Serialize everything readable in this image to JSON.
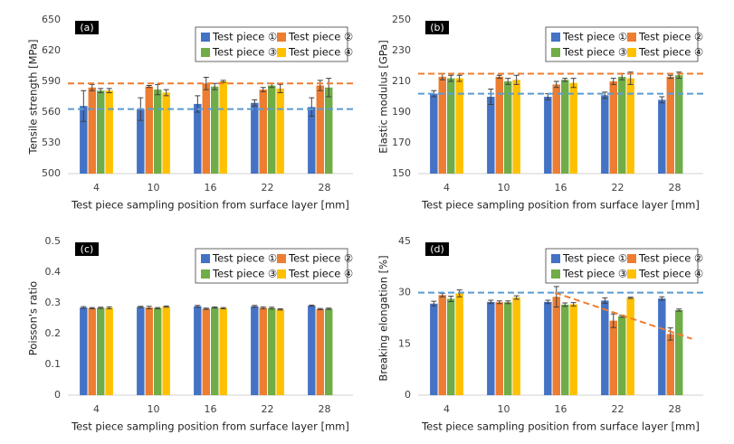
{
  "chart_data": [
    {
      "type": "bar",
      "panel_label": "(a)",
      "ylabel": "Tensile strength [MPa]",
      "xlabel": "Test piece sampling position from surface layer [mm]",
      "categories": [
        "4",
        "10",
        "16",
        "22",
        "28"
      ],
      "ylim": [
        500,
        650
      ],
      "yticks": [
        500,
        530,
        560,
        590,
        620,
        650
      ],
      "legend": "upper right",
      "series": [
        {
          "name": "Test piece ①",
          "color": "#4472c4",
          "values": [
            566,
            563,
            568,
            569,
            565
          ],
          "errors": [
            15,
            11,
            8,
            3,
            9
          ]
        },
        {
          "name": "Test piece ②",
          "color": "#ed7d31",
          "values": [
            584,
            585,
            588,
            582,
            586
          ],
          "errors": [
            3,
            1,
            6,
            2,
            5
          ]
        },
        {
          "name": "Test piece ③",
          "color": "#70ad47",
          "values": [
            581,
            582,
            585,
            586,
            584
          ],
          "errors": [
            2,
            5,
            3,
            2,
            9
          ]
        },
        {
          "name": "Test piece ④",
          "color": "#ffc000",
          "values": [
            581,
            579,
            590,
            583,
            null
          ],
          "errors": [
            2,
            3,
            1,
            4,
            null
          ]
        }
      ],
      "ref_lines": [
        {
          "value": 588,
          "color": "#ed7d31"
        },
        {
          "value": 563,
          "color": "#5b9bd5"
        }
      ]
    },
    {
      "type": "bar",
      "panel_label": "(b)",
      "ylabel": "Elastic modulus [GPa]",
      "xlabel": "Test piece sampling position from surface layer [mm]",
      "categories": [
        "4",
        "10",
        "16",
        "22",
        "28"
      ],
      "ylim": [
        150,
        250
      ],
      "yticks": [
        150,
        170,
        190,
        210,
        230,
        250
      ],
      "legend": "upper right",
      "series": [
        {
          "name": "Test piece ①",
          "color": "#4472c4",
          "values": [
            202,
            200,
            200,
            201,
            198
          ],
          "errors": [
            2,
            5,
            2,
            2,
            2
          ]
        },
        {
          "name": "Test piece ②",
          "color": "#ed7d31",
          "values": [
            213,
            213,
            208,
            210,
            213
          ],
          "errors": [
            2,
            1,
            2,
            2,
            1
          ]
        },
        {
          "name": "Test piece ③",
          "color": "#70ad47",
          "values": [
            212,
            210,
            211,
            213,
            214
          ],
          "errors": [
            2,
            2,
            1,
            2,
            2
          ]
        },
        {
          "name": "Test piece ④",
          "color": "#ffc000",
          "values": [
            212,
            211,
            209,
            212,
            null
          ],
          "errors": [
            2,
            3,
            3,
            4,
            null
          ]
        }
      ],
      "ref_lines": [
        {
          "value": 215,
          "color": "#ed7d31"
        },
        {
          "value": 202,
          "color": "#5b9bd5"
        }
      ]
    },
    {
      "type": "bar",
      "panel_label": "(c)",
      "ylabel": "Poisson's ratio",
      "xlabel": "Test piece sampling position from surface layer [mm]",
      "categories": [
        "4",
        "10",
        "16",
        "22",
        "28"
      ],
      "ylim": [
        0,
        0.5
      ],
      "yticks": [
        0,
        0.1,
        0.2,
        0.3,
        0.4,
        0.5
      ],
      "legend": "upper right",
      "series": [
        {
          "name": "Test piece ①",
          "color": "#4472c4",
          "values": [
            0.285,
            0.287,
            0.289,
            0.289,
            0.291
          ],
          "errors": [
            0.003,
            0.002,
            0.003,
            0.003,
            0.002
          ]
        },
        {
          "name": "Test piece ②",
          "color": "#ed7d31",
          "values": [
            0.283,
            0.285,
            0.281,
            0.284,
            0.28
          ],
          "errors": [
            0.002,
            0.004,
            0.002,
            0.003,
            0.002
          ]
        },
        {
          "name": "Test piece ③",
          "color": "#70ad47",
          "values": [
            0.284,
            0.283,
            0.285,
            0.283,
            0.281
          ],
          "errors": [
            0.002,
            0.002,
            0.002,
            0.003,
            0.002
          ]
        },
        {
          "name": "Test piece ④",
          "color": "#ffc000",
          "values": [
            0.284,
            0.288,
            0.283,
            0.279,
            null
          ],
          "errors": [
            0.003,
            0.002,
            0.002,
            0.002,
            null
          ]
        }
      ]
    },
    {
      "type": "bar",
      "panel_label": "(d)",
      "ylabel": "Breaking elongation [%]",
      "xlabel": "Test piece sampling position from surface layer [mm]",
      "categories": [
        "4",
        "10",
        "16",
        "22",
        "28"
      ],
      "ylim": [
        0,
        45
      ],
      "yticks": [
        0,
        15,
        30,
        45
      ],
      "legend": "upper right",
      "series": [
        {
          "name": "Test piece ①",
          "color": "#4472c4",
          "values": [
            26.8,
            27.3,
            27.3,
            27.7,
            28.3
          ],
          "errors": [
            0.7,
            0.5,
            0.5,
            0.8,
            0.5
          ]
        },
        {
          "name": "Test piece ②",
          "color": "#ed7d31",
          "values": [
            29.3,
            27.2,
            28.8,
            21.8,
            17.9
          ],
          "errors": [
            0.5,
            0.4,
            3,
            2,
            1.8
          ]
        },
        {
          "name": "Test piece ③",
          "color": "#70ad47",
          "values": [
            28.2,
            27.2,
            26.5,
            23.1,
            24.9
          ],
          "errors": [
            0.8,
            0.4,
            0.5,
            0.3,
            0.3
          ]
        },
        {
          "name": "Test piece ④",
          "color": "#ffc000",
          "values": [
            29.8,
            28.6,
            26.6,
            28.5,
            null
          ],
          "errors": [
            1,
            0.5,
            0.5,
            0.2,
            null
          ]
        }
      ],
      "ref_lines": [
        {
          "value": 30,
          "color": "#5b9bd5"
        }
      ],
      "trend_line": {
        "color": "#ed7d31",
        "categories": [
          "16",
          "28"
        ],
        "values": [
          30,
          16.5
        ]
      }
    }
  ]
}
